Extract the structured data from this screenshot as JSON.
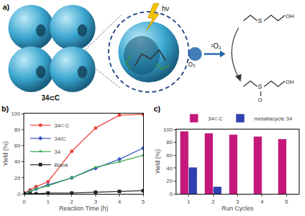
{
  "diagram": {
    "label": "a)",
    "light": "hν",
    "oxygen": "O₂",
    "singlet_oxygen": "¹O₂",
    "caption": "34⊂C",
    "reactant": [
      "S",
      "OH"
    ],
    "product": [
      "S",
      "O",
      "OH"
    ]
  },
  "chart_data": [
    {
      "type": "line",
      "title": "b)",
      "xlabel": "Reaction Time (h)",
      "ylabel": "Yield (%)",
      "x": [
        0,
        0.25,
        0.5,
        1,
        2,
        3,
        4,
        5
      ],
      "series": [
        {
          "name": "34⊂C",
          "color": "#e8453c",
          "marker": "circle",
          "values": [
            1,
            5,
            9,
            15,
            53,
            82,
            98,
            99
          ]
        },
        {
          "name": "34/C",
          "color": "#3a57c9",
          "marker": "diamond",
          "values": [
            0,
            3,
            6,
            11,
            20,
            32,
            43,
            57
          ]
        },
        {
          "name": "34",
          "color": "#3aa84a",
          "marker": "triangle-up",
          "values": [
            0,
            3,
            6,
            10,
            20,
            33,
            40,
            48
          ]
        },
        {
          "name": "Blank",
          "color": "#222222",
          "marker": "square",
          "values": [
            0,
            0,
            0,
            1,
            1,
            2,
            3,
            4
          ]
        }
      ],
      "xlim": [
        0,
        5
      ],
      "xticks": [
        0,
        1,
        2,
        3,
        4,
        5
      ],
      "ylim": [
        0,
        100
      ],
      "yticks": [
        0,
        20,
        40,
        60,
        80,
        100
      ],
      "legend": "upper left"
    },
    {
      "type": "bar",
      "title": "c)",
      "xlabel": "Run Cycles",
      "ylabel": "Yield (%)",
      "categories": [
        "1",
        "2",
        "3",
        "4",
        "5"
      ],
      "series": [
        {
          "name": "34⊂C",
          "color": "#c4197a",
          "values": [
            97,
            94,
            92,
            89,
            85
          ]
        },
        {
          "name": "metallacycle 34",
          "color": "#3040b0",
          "values": [
            41,
            11,
            null,
            null,
            null
          ]
        }
      ],
      "ylim": [
        0,
        100
      ],
      "yticks": [
        0,
        20,
        40,
        60,
        80,
        100
      ],
      "legend": "top"
    }
  ]
}
